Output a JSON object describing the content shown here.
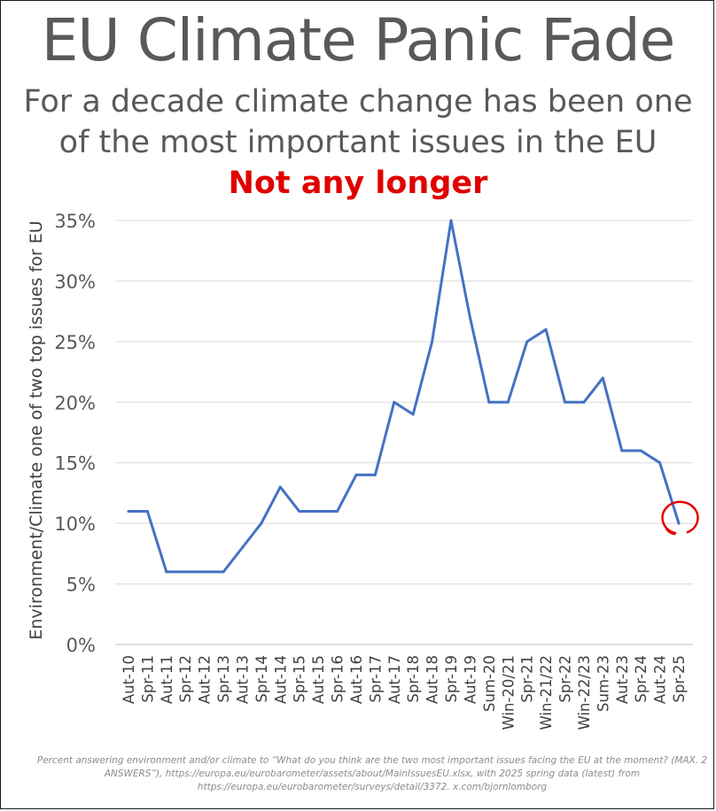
{
  "title": "EU Climate Panic Fade",
  "subtitle_line1": "For a decade climate change has been one",
  "subtitle_line2": "of the most important issues in the EU",
  "highlight": "Not any longer",
  "source_note": "Percent answering environment and/or climate to “What do you think are the two most important issues facing the EU at the moment? (MAX. 2 ANSWERS”), https://europa.eu/eurobarometer/assets/about/MainIssuesEU.xlsx, with 2025 spring data (latest) from https://europa.eu/eurobarometer/surveys/detail/3372. x.com/bjornlomborg",
  "colors": {
    "line": "#4472c4",
    "highlight": "#e00000",
    "grid": "#d9d9d9",
    "text": "#595959"
  },
  "chart_data": {
    "type": "line",
    "title": "EU Climate Panic Fade",
    "xlabel": "",
    "ylabel": "Environment/Climate one of two top issues for EU",
    "ylim": [
      0,
      35
    ],
    "yticks": [
      0,
      5,
      10,
      15,
      20,
      25,
      30,
      35
    ],
    "ytick_labels": [
      "0%",
      "5%",
      "10%",
      "15%",
      "20%",
      "25%",
      "30%",
      "35%"
    ],
    "grid": true,
    "x_labels": [
      "Aut-10",
      "Spr-11",
      "Aut-11",
      "Spr-12",
      "Aut-12",
      "Spr-13",
      "Aut-13",
      "Spr-14",
      "Aut-14",
      "Spr-15",
      "Aut-15",
      "Spr-16",
      "Aut-16",
      "Spr-17",
      "Aut-17",
      "Spr-18",
      "Aut-18",
      "Spr-19",
      "Aut-19",
      "Sum-20",
      "Win-20/21",
      "Spr-21",
      "Win-21/22",
      "Spr-22",
      "Win-22/23",
      "Sum-23",
      "Aut-23",
      "Spr-24",
      "Aut-24",
      "Spr-25"
    ],
    "series": [
      {
        "name": "Environment/Climate",
        "values": [
          11,
          11,
          6,
          6,
          6,
          6,
          8,
          10,
          13,
          11,
          11,
          11,
          14,
          14,
          20,
          19,
          25,
          35,
          27,
          20,
          20,
          25,
          26,
          20,
          20,
          22,
          16,
          16,
          15,
          10
        ]
      }
    ],
    "annotation": "red circle around latest value (Spr-25)"
  }
}
